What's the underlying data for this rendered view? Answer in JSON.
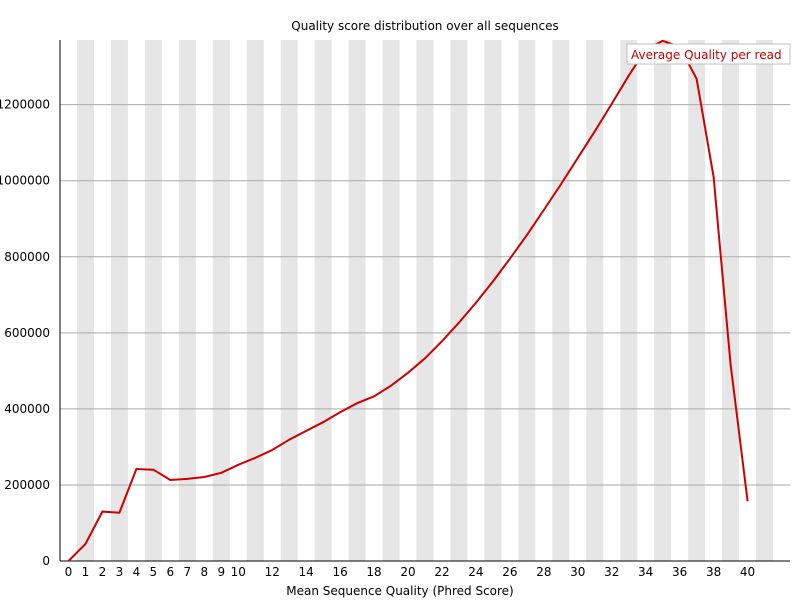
{
  "colors": {
    "series": "#cc0000",
    "stripe": "#e6e6e6",
    "grid": "#aaaaaa",
    "axis": "#000000",
    "legend_border": "#c0c0c0"
  },
  "chart_data": {
    "type": "line",
    "title": "Quality score distribution over all sequences",
    "xlabel": "Mean Sequence Quality (Phred Score)",
    "ylabel": "",
    "xlim": [
      0,
      40
    ],
    "ylim": [
      0,
      1370000
    ],
    "x_tick_labels": [
      "0",
      "1",
      "2",
      "3",
      "4",
      "5",
      "6",
      "7",
      "8",
      "9",
      "10",
      "12",
      "14",
      "16",
      "18",
      "20",
      "22",
      "24",
      "26",
      "28",
      "30",
      "32",
      "34",
      "36",
      "38",
      "40"
    ],
    "y_ticks": [
      0,
      200000,
      400000,
      600000,
      800000,
      1000000,
      1200000
    ],
    "y_tick_labels": [
      "0",
      "200000",
      "400000",
      "600000",
      "800000",
      "1000000",
      "1200000"
    ],
    "grid": "horizontal",
    "alternating_stripes": true,
    "legend_position": "top-right",
    "series": [
      {
        "name": "Average Quality per read",
        "x": [
          0,
          1,
          2,
          3,
          4,
          5,
          6,
          7,
          8,
          9,
          10,
          11,
          12,
          13,
          14,
          15,
          16,
          17,
          18,
          19,
          20,
          21,
          22,
          23,
          24,
          25,
          26,
          27,
          28,
          29,
          30,
          31,
          32,
          33,
          34,
          35,
          36,
          37,
          38,
          39,
          40
        ],
        "values": [
          0,
          45000,
          130000,
          127000,
          242000,
          240000,
          213000,
          216000,
          221000,
          232000,
          253000,
          271000,
          292000,
          319000,
          342000,
          365000,
          391000,
          415000,
          433000,
          461000,
          495000,
          533000,
          578000,
          627000,
          679000,
          735000,
          795000,
          857000,
          923000,
          990000,
          1060000,
          1130000,
          1202000,
          1276000,
          1345000,
          1368000,
          1352000,
          1268000,
          1010000,
          517000,
          157000
        ]
      }
    ]
  }
}
